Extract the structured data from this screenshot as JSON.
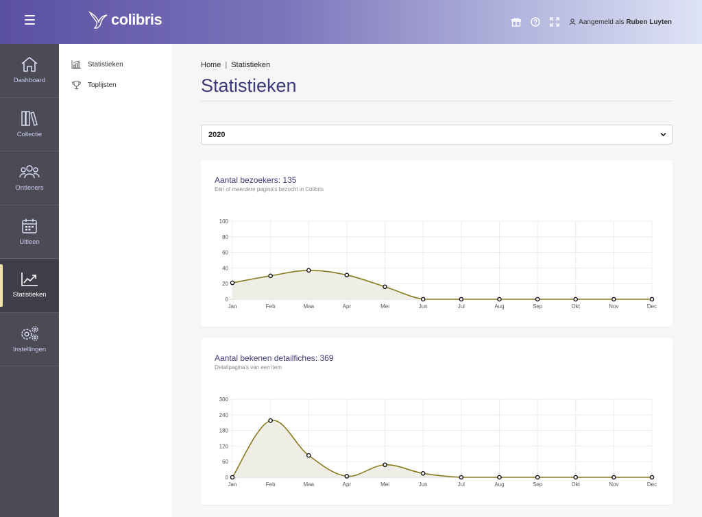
{
  "header": {
    "brand": "colibris",
    "login_prefix": "Aangemeld als",
    "login_user": "Ruben Luyten",
    "icons": [
      "gift-icon",
      "help-icon",
      "fullscreen-icon",
      "user-icon"
    ],
    "accent": "#5a4fa3"
  },
  "sidebar": {
    "items": [
      {
        "label": "Dashboard",
        "icon": "home-icon"
      },
      {
        "label": "Collectie",
        "icon": "books-icon"
      },
      {
        "label": "Ontleners",
        "icon": "users-icon"
      },
      {
        "label": "Uitleen",
        "icon": "calendar-icon"
      },
      {
        "label": "Statistieken",
        "icon": "chart-icon",
        "active": true
      },
      {
        "label": "Instellingen",
        "icon": "gears-icon"
      }
    ]
  },
  "subnav": {
    "items": [
      {
        "label": "Statistieken",
        "icon": "stats-icon"
      },
      {
        "label": "Toplijsten",
        "icon": "trophy-icon"
      }
    ]
  },
  "main": {
    "breadcrumb": [
      "Home",
      "Statistieken"
    ],
    "title": "Statistieken",
    "year_select": "2020"
  },
  "cards": [
    {
      "title": "Aantal bezoekers: 135",
      "subtitle": "Eén of meerdere pagina's bezocht in Colibris"
    },
    {
      "title": "Aantal bekenen detailfiches: 369",
      "subtitle": "Detailpagina's van een item"
    }
  ],
  "chart_data": [
    {
      "type": "area",
      "title": "",
      "xlabel": "",
      "ylabel": "",
      "categories": [
        "Jan",
        "Feb",
        "Maa",
        "Apr",
        "Mei",
        "Jun",
        "Jul",
        "Aug",
        "Sep",
        "Okt",
        "Nov",
        "Dec"
      ],
      "values": [
        21,
        30,
        37,
        31,
        16,
        0,
        0,
        0,
        0,
        0,
        0,
        0
      ],
      "ylim": [
        0,
        100
      ],
      "yticks": [
        0,
        20,
        40,
        60,
        80,
        100
      ],
      "grid": true,
      "line_color": "#8a7a1e",
      "fill_color": "#eeede6"
    },
    {
      "type": "area",
      "title": "",
      "xlabel": "",
      "ylabel": "",
      "categories": [
        "Jan",
        "Feb",
        "Maa",
        "Apr",
        "Mei",
        "Jun",
        "Jul",
        "Aug",
        "Sep",
        "Okt",
        "Nov",
        "Dec"
      ],
      "values": [
        0,
        218,
        84,
        4,
        48,
        15,
        0,
        0,
        0,
        0,
        0,
        0
      ],
      "ylim": [
        0,
        300
      ],
      "yticks": [
        0,
        60,
        120,
        180,
        240,
        300
      ],
      "grid": true,
      "line_color": "#8a7a1e",
      "fill_color": "#eeede6"
    }
  ]
}
